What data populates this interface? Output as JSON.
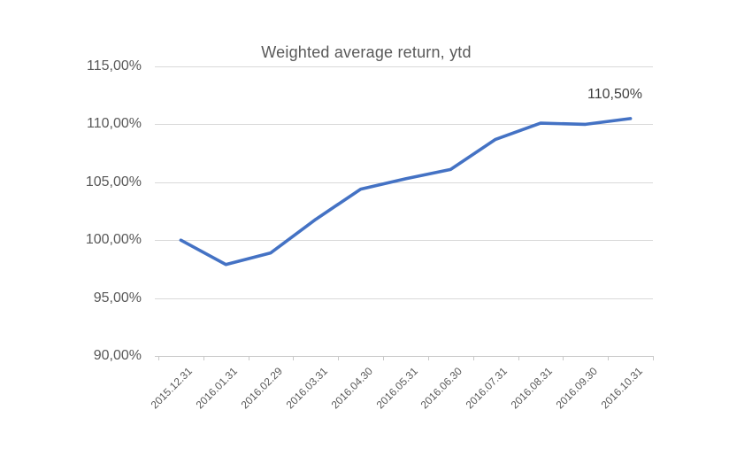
{
  "chart_data": {
    "type": "line",
    "title": "Weighted average return, ytd",
    "xlabel": "",
    "ylabel": "",
    "categories": [
      "2015.12.31",
      "2016.01.31",
      "2016.02.29",
      "2016.03.31",
      "2016.04.30",
      "2016.05.31",
      "2016.06.30",
      "2016.07.31",
      "2016.08.31",
      "2016.09.30",
      "2016.10.31"
    ],
    "series": [
      {
        "name": "Weighted average return, ytd",
        "values": [
          100.0,
          97.9,
          98.9,
          101.8,
          104.4,
          105.3,
          106.1,
          108.7,
          110.1,
          110.0,
          110.5
        ]
      }
    ],
    "end_label": "110,50%",
    "ylim": [
      90,
      115
    ],
    "y_ticks": [
      {
        "value": 90,
        "label": "90,00%"
      },
      {
        "value": 95,
        "label": "95,00%"
      },
      {
        "value": 100,
        "label": "100,00%"
      },
      {
        "value": 105,
        "label": "105,00%"
      },
      {
        "value": 110,
        "label": "110,00%"
      },
      {
        "value": 115,
        "label": "115,00%"
      }
    ],
    "grid": true,
    "legend": "none",
    "colors": {
      "line": "#4472C4",
      "gridline": "#d9d9d9",
      "axis": "#c9c9c9",
      "tick_text": "#595959",
      "title_text": "#595959",
      "data_label_text": "#404040"
    }
  }
}
